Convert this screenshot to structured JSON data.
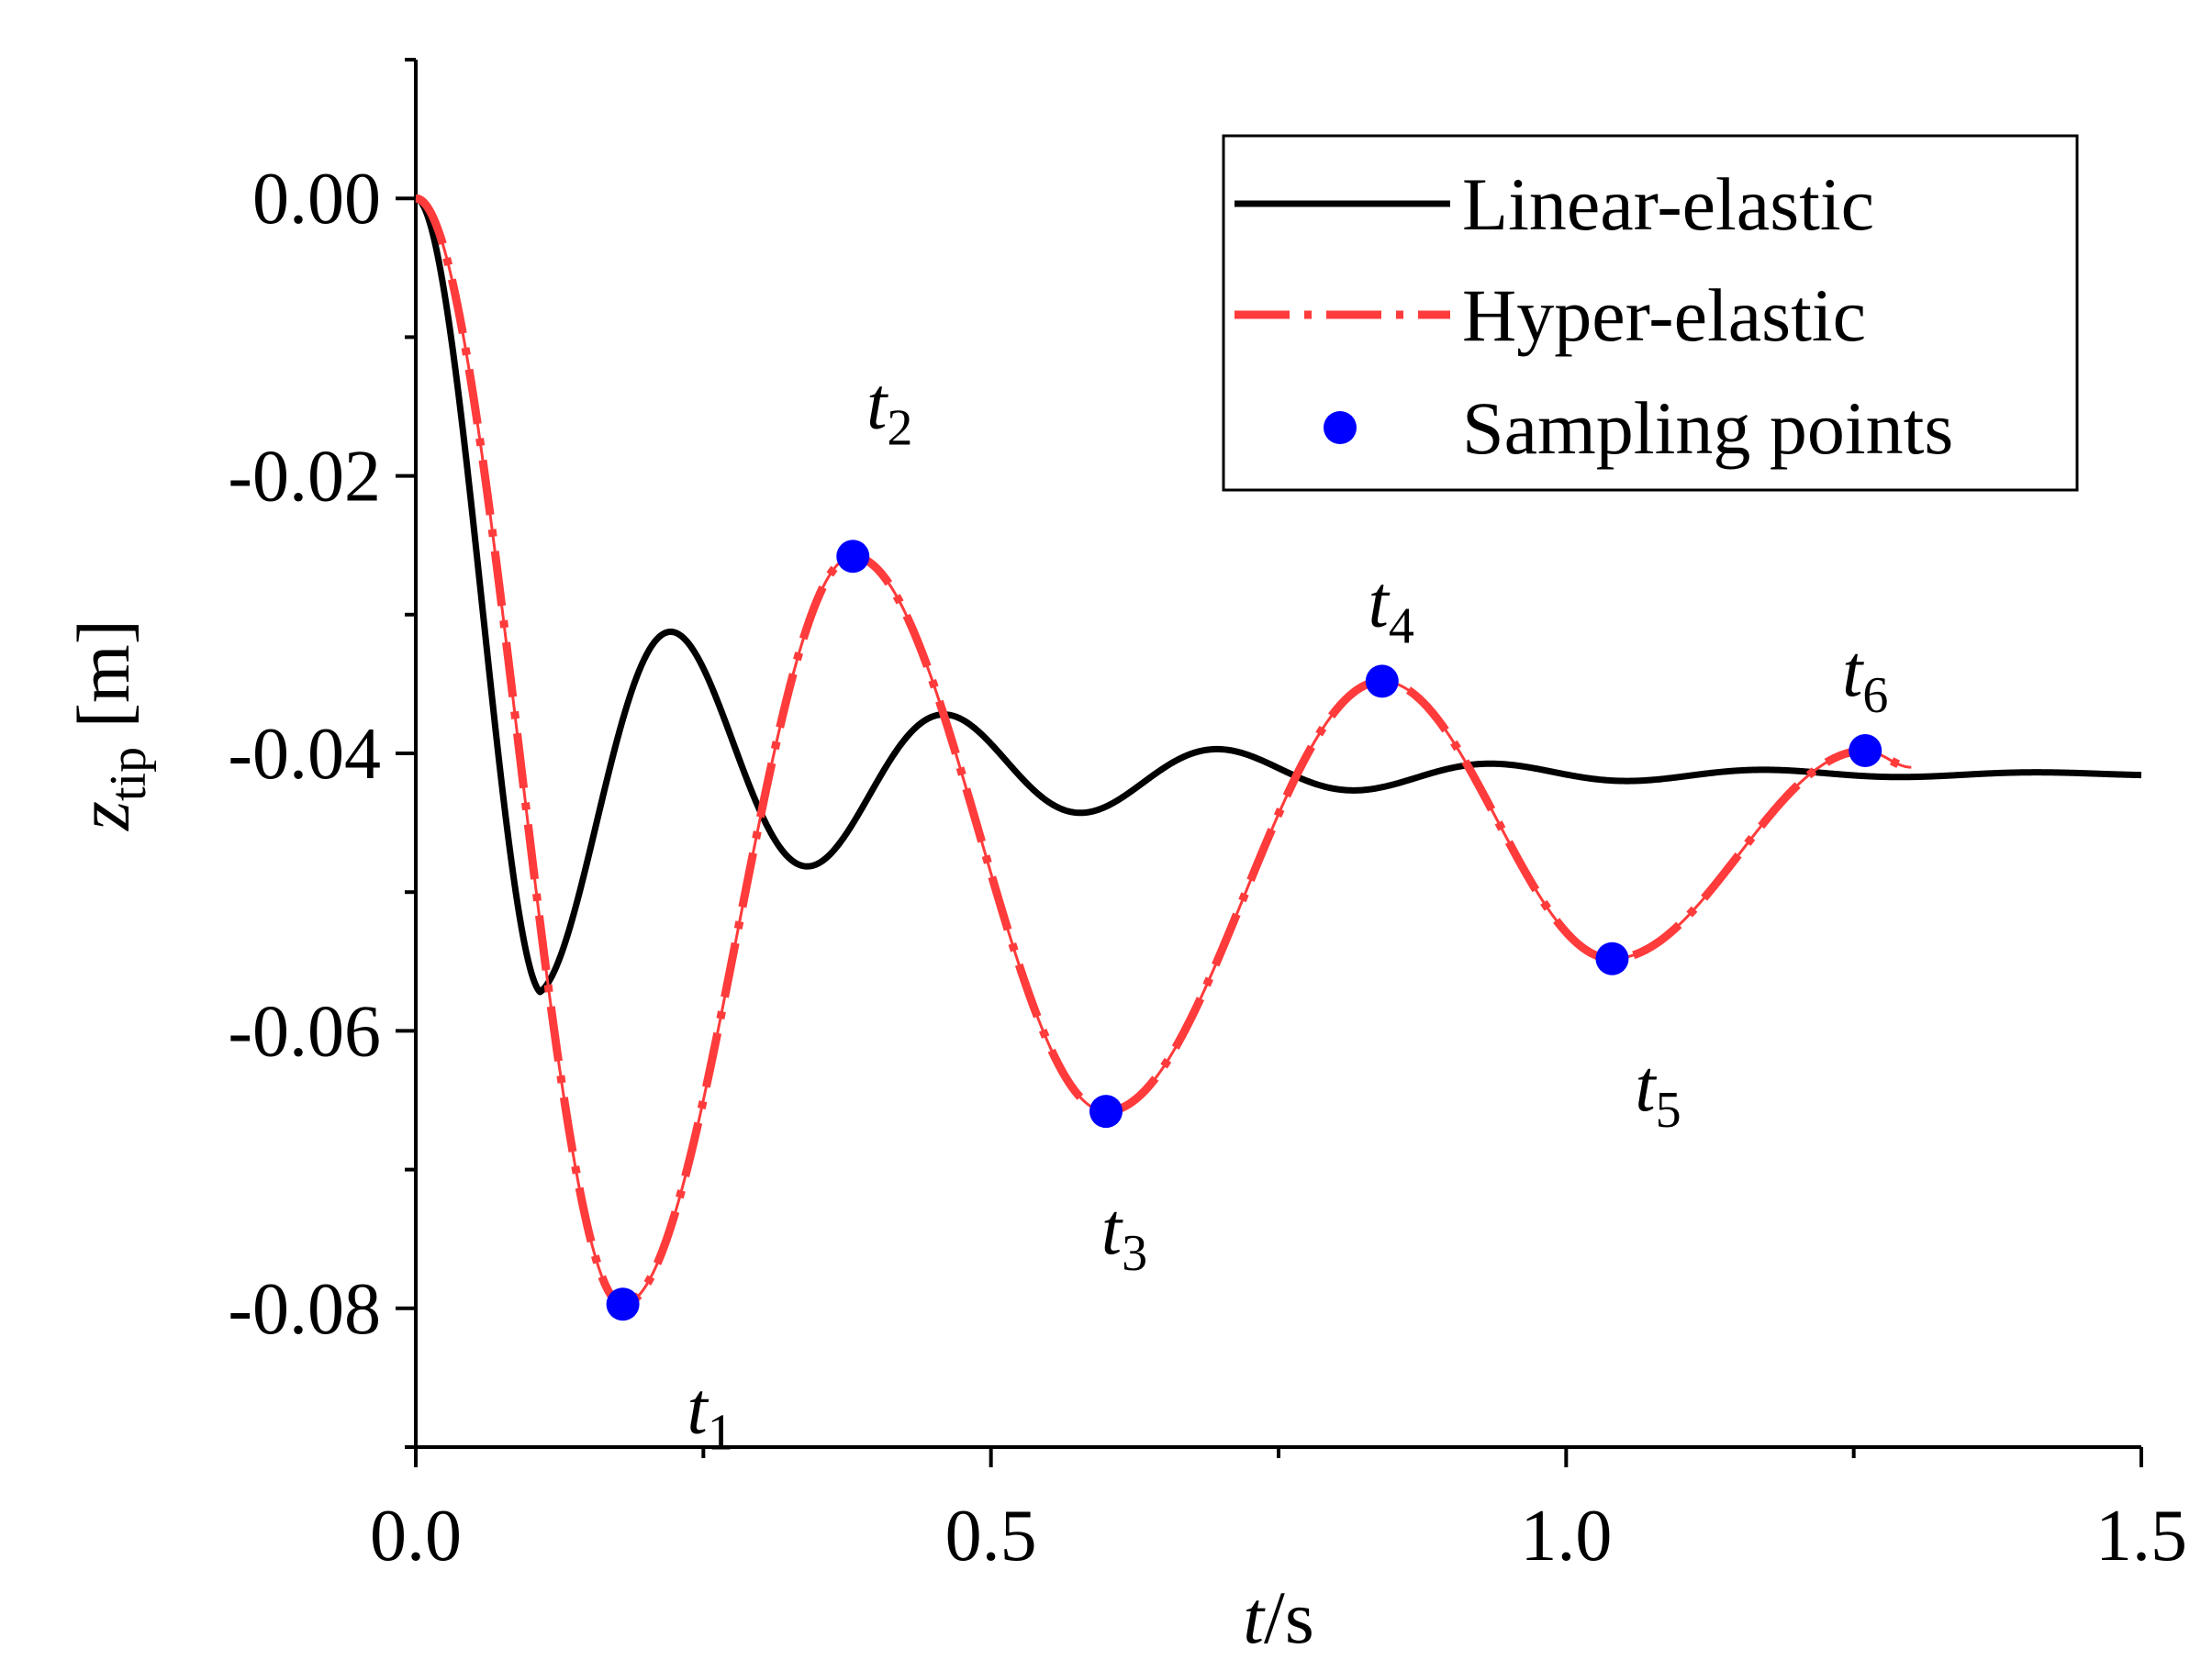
{
  "chart_data": {
    "type": "line",
    "title": "",
    "xlabel": {
      "italic": "t",
      "rest": "/s"
    },
    "ylabel": {
      "main": "z",
      "subscript": "tip",
      "rest": " [m]"
    },
    "xlim": [
      0,
      1.5
    ],
    "ylim": [
      -0.09,
      0.01
    ],
    "x_ticks": [
      {
        "value": 0.0,
        "label": "0.0"
      },
      {
        "value": 0.5,
        "label": "0.5"
      },
      {
        "value": 1.0,
        "label": "1.0"
      },
      {
        "value": 1.5,
        "label": "1.5"
      }
    ],
    "x_minor_ticks": [
      0.25,
      0.75,
      1.25
    ],
    "y_ticks": [
      {
        "value": 0.0,
        "label": "0.00"
      },
      {
        "value": -0.02,
        "label": "-0.02"
      },
      {
        "value": -0.04,
        "label": "-0.04"
      },
      {
        "value": -0.06,
        "label": "-0.06"
      },
      {
        "value": -0.08,
        "label": "-0.08"
      }
    ],
    "y_minor_ticks": [
      0.01,
      -0.01,
      -0.03,
      -0.05,
      -0.07,
      -0.09
    ],
    "legend": {
      "position": "top-right",
      "entries": [
        "Linear-elastic",
        "Hyper-elastic",
        "Sampling points"
      ]
    },
    "series": [
      {
        "name": "Linear-elastic",
        "color": "#000000",
        "style": "solid",
        "model": {
          "start_time": 0.108,
          "t_end": 1.5,
          "initial_value": 0.0,
          "peak_value": -0.0572,
          "final_value": -0.0415,
          "decay": 3.66,
          "period": 0.2375,
          "phase": 0.0
        }
      },
      {
        "name": "Hyper-elastic",
        "color": "#ff3b3b",
        "style": "dash-dot",
        "model": {
          "extrema": [
            {
              "t": 0.0,
              "z": 0.0
            },
            {
              "t": 0.18,
              "z": -0.0797
            },
            {
              "t": 0.38,
              "z": -0.0258
            },
            {
              "t": 0.6,
              "z": -0.0658
            },
            {
              "t": 0.84,
              "z": -0.0348
            },
            {
              "t": 1.04,
              "z": -0.0548
            },
            {
              "t": 1.26,
              "z": -0.0398
            },
            {
              "t": 1.3,
              "z": -0.041
            }
          ]
        }
      }
    ],
    "sampling_points": {
      "name": "Sampling points",
      "color": "#0000ff",
      "points": [
        {
          "x": 0.18,
          "y": -0.0797,
          "label": "t",
          "sub": "1",
          "label_pos": "below"
        },
        {
          "x": 0.38,
          "y": -0.0258,
          "label": "t",
          "sub": "2",
          "label_pos": "above-high"
        },
        {
          "x": 0.6,
          "y": -0.0658,
          "label": "t",
          "sub": "3",
          "label_pos": "below"
        },
        {
          "x": 0.84,
          "y": -0.0348,
          "label": "t",
          "sub": "4",
          "label_pos": "above"
        },
        {
          "x": 1.04,
          "y": -0.0548,
          "label": "t",
          "sub": "5",
          "label_pos": "below"
        },
        {
          "x": 1.26,
          "y": -0.0398,
          "label": "t",
          "sub": "6",
          "label_pos": "above"
        }
      ]
    }
  }
}
